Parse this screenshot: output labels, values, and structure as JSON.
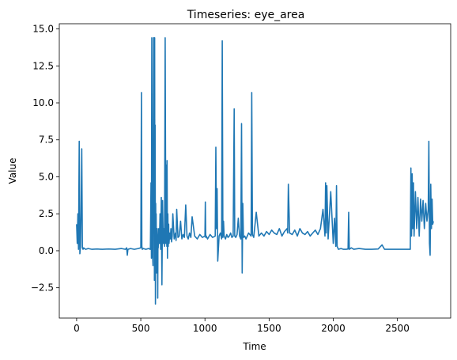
{
  "chart_data": {
    "type": "line",
    "title": "Timeseries: eye_area",
    "xlabel": "Time",
    "ylabel": "Value",
    "xlim": [
      -135,
      2915
    ],
    "ylim": [
      -4.55,
      15.35
    ],
    "xticks": [
      0,
      500,
      1000,
      1500,
      2000,
      2500
    ],
    "yticks": [
      -2.5,
      0.0,
      2.5,
      5.0,
      7.5,
      10.0,
      12.5,
      15.0
    ],
    "xtick_labels": [
      "0",
      "500",
      "1000",
      "1500",
      "2000",
      "2500"
    ],
    "ytick_labels": [
      "−2.5",
      "0.0",
      "2.5",
      "5.0",
      "7.5",
      "10.0",
      "12.5",
      "15.0"
    ],
    "grid": false,
    "series": [
      {
        "color": "#1f77b4",
        "x": [
          0,
          5,
          10,
          15,
          20,
          25,
          30,
          35,
          40,
          45,
          50,
          55,
          60,
          70,
          90,
          120,
          160,
          200,
          250,
          300,
          350,
          380,
          390,
          395,
          400,
          420,
          450,
          480,
          500,
          505,
          508,
          512,
          520,
          540,
          560,
          575,
          580,
          583,
          586,
          590,
          595,
          600,
          602,
          604,
          606,
          608,
          610,
          612,
          614,
          616,
          618,
          620,
          622,
          624,
          626,
          628,
          630,
          632,
          634,
          636,
          640,
          645,
          650,
          655,
          660,
          665,
          670,
          675,
          680,
          685,
          690,
          695,
          700,
          703,
          705,
          708,
          711,
          714,
          717,
          720,
          725,
          730,
          735,
          740,
          745,
          750,
          760,
          770,
          775,
          780,
          790,
          800,
          810,
          820,
          830,
          840,
          850,
          860,
          870,
          880,
          890,
          900,
          920,
          940,
          960,
          980,
          1000,
          1003,
          1006,
          1010,
          1020,
          1040,
          1060,
          1080,
          1085,
          1090,
          1095,
          1100,
          1110,
          1120,
          1130,
          1135,
          1140,
          1145,
          1150,
          1160,
          1170,
          1180,
          1190,
          1200,
          1210,
          1220,
          1228,
          1232,
          1240,
          1250,
          1260,
          1270,
          1280,
          1285,
          1290,
          1295,
          1300,
          1310,
          1320,
          1340,
          1360,
          1365,
          1370,
          1380,
          1400,
          1420,
          1440,
          1460,
          1480,
          1500,
          1520,
          1540,
          1560,
          1580,
          1600,
          1620,
          1640,
          1645,
          1650,
          1660,
          1680,
          1700,
          1720,
          1740,
          1760,
          1780,
          1800,
          1820,
          1840,
          1860,
          1880,
          1900,
          1920,
          1935,
          1940,
          1945,
          1950,
          1960,
          1980,
          2000,
          2010,
          2020,
          2025,
          2030,
          2040,
          2060,
          2080,
          2100,
          2115,
          2120,
          2125,
          2140,
          2160,
          2200,
          2250,
          2300,
          2350,
          2380,
          2400,
          2450,
          2500,
          2550,
          2580,
          2600,
          2605,
          2610,
          2615,
          2620,
          2625,
          2630,
          2640,
          2650,
          2660,
          2670,
          2680,
          2690,
          2700,
          2710,
          2720,
          2730,
          2740,
          2745,
          2750,
          2755,
          2760,
          2765,
          2770,
          2775,
          2780
        ],
        "y": [
          1.8,
          0.5,
          2.5,
          0.1,
          7.4,
          -0.2,
          0.3,
          2.8,
          6.9,
          0.2,
          0.1,
          0.2,
          0.15,
          0.1,
          0.15,
          0.1,
          0.12,
          0.1,
          0.12,
          0.1,
          0.15,
          0.1,
          0.2,
          -0.3,
          0.1,
          0.15,
          0.1,
          0.15,
          0.2,
          10.7,
          0.3,
          0.1,
          0.15,
          0.1,
          0.15,
          0.1,
          4.6,
          -0.5,
          14.4,
          0.2,
          -1.0,
          14.4,
          3.5,
          14.4,
          -2.0,
          14.4,
          0.5,
          8.5,
          -3.6,
          3.2,
          0.8,
          2.5,
          -1.5,
          1.5,
          -0.5,
          1.5,
          0.5,
          -3.2,
          1.0,
          0.2,
          1.5,
          0.5,
          2.5,
          0.1,
          3.6,
          -2.3,
          3.4,
          0.5,
          1.5,
          0.3,
          14.4,
          0.5,
          5.8,
          0.3,
          6.1,
          -0.5,
          2.5,
          0.3,
          1.8,
          0.5,
          1.2,
          0.8,
          1.5,
          0.6,
          1.0,
          2.5,
          0.8,
          1.2,
          0.7,
          2.8,
          0.9,
          1.0,
          2.0,
          0.8,
          1.1,
          0.9,
          3.1,
          1.0,
          0.8,
          1.2,
          0.9,
          2.3,
          1.0,
          0.8,
          1.1,
          0.9,
          1.0,
          3.3,
          0.9,
          1.0,
          0.8,
          1.1,
          0.9,
          1.0,
          7.0,
          1.5,
          4.2,
          -0.7,
          1.0,
          1.2,
          0.8,
          14.2,
          0.9,
          2.0,
          1.0,
          0.8,
          1.1,
          0.9,
          1.0,
          1.2,
          0.9,
          1.0,
          9.6,
          1.0,
          0.9,
          1.1,
          2.2,
          1.0,
          0.8,
          8.6,
          -1.5,
          3.2,
          0.9,
          1.0,
          0.8,
          1.2,
          1.0,
          10.7,
          1.1,
          0.9,
          2.6,
          1.0,
          1.2,
          1.0,
          1.3,
          1.1,
          1.4,
          1.2,
          1.1,
          1.5,
          1.0,
          1.3,
          1.5,
          1.2,
          4.5,
          1.2,
          1.1,
          1.4,
          1.0,
          1.5,
          1.2,
          1.1,
          1.3,
          1.0,
          1.2,
          1.4,
          1.1,
          1.5,
          2.8,
          1.0,
          4.6,
          1.2,
          4.4,
          0.8,
          4.0,
          0.5,
          2.2,
          0.3,
          4.4,
          0.3,
          0.1,
          0.15,
          0.1,
          0.1,
          0.12,
          2.6,
          0.1,
          0.2,
          0.1,
          0.15,
          0.1,
          0.1,
          0.12,
          0.4,
          0.1,
          0.1,
          0.1,
          0.1,
          0.1,
          0.1,
          5.6,
          1.0,
          5.2,
          1.5,
          4.6,
          1.0,
          4.0,
          1.5,
          3.6,
          1.0,
          3.5,
          2.0,
          3.4,
          1.5,
          3.2,
          2.0,
          2.8,
          7.4,
          0.5,
          -0.3,
          4.5,
          1.5,
          3.5,
          1.8,
          2.0
        ]
      }
    ]
  }
}
